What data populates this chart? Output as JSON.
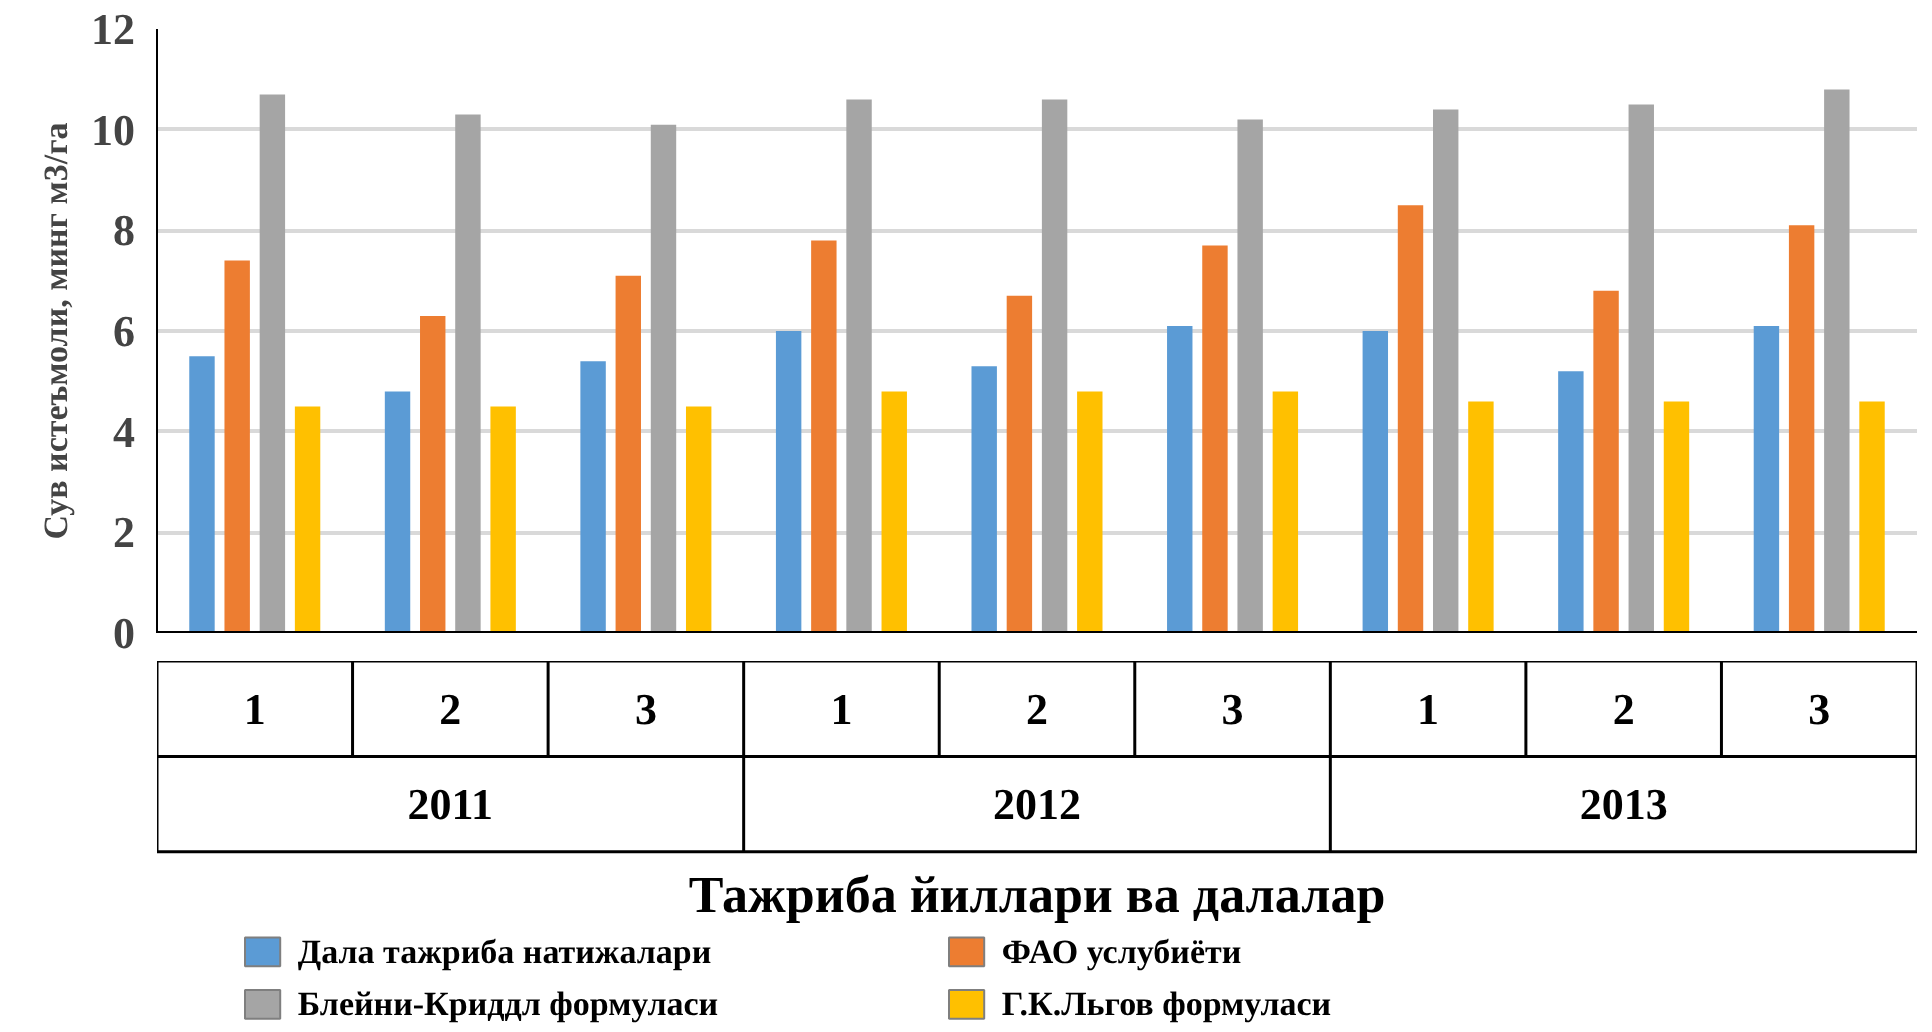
{
  "chart_data": {
    "type": "bar",
    "ylabel": "Сув истеъмоли, минг м3/га",
    "xlabel": "Тажриба йиллари ва далалар",
    "categories": [
      "1",
      "2",
      "3",
      "1",
      "2",
      "3",
      "1",
      "2",
      "3"
    ],
    "annotations": [
      "2011",
      "2012",
      "2013"
    ],
    "series": [
      {
        "name": "Дала тажриба натижалари",
        "color": "#5b9bd5",
        "values": [
          5.5,
          4.8,
          5.4,
          6.0,
          5.3,
          6.1,
          6.0,
          5.2,
          6.1
        ]
      },
      {
        "name": "ФАО услубиёти",
        "color": "#ed7d31",
        "values": [
          7.4,
          6.3,
          7.1,
          7.8,
          6.7,
          7.7,
          8.5,
          6.8,
          8.1
        ]
      },
      {
        "name": "Блейни-Криддл формуласи",
        "color": "#a5a5a5",
        "values": [
          10.7,
          10.3,
          10.1,
          10.6,
          10.6,
          10.2,
          10.4,
          10.5,
          10.8
        ]
      },
      {
        "name": "Г.К.Льгов формуласи",
        "color": "#ffc000",
        "values": [
          4.5,
          4.5,
          4.5,
          4.8,
          4.8,
          4.8,
          4.6,
          4.6,
          4.6
        ]
      }
    ],
    "ylim": [
      0,
      12
    ],
    "yticks": [
      0,
      2,
      4,
      6,
      8,
      10,
      12
    ],
    "grid": "y",
    "legend": "bottom"
  }
}
